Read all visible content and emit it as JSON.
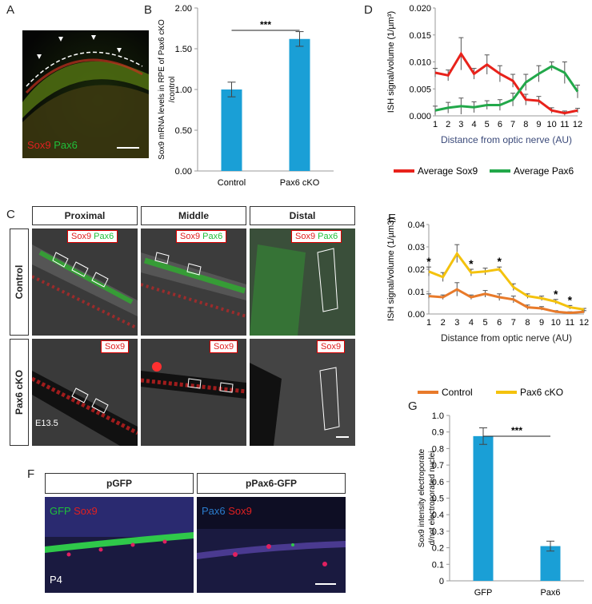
{
  "panels": {
    "A": {
      "letter": "A",
      "legend_a": "Sox9",
      "legend_b": "Pax6"
    },
    "B": {
      "letter": "B"
    },
    "C": {
      "letter": "C",
      "cols": [
        "Proximal",
        "Middle",
        "Distal"
      ],
      "rows": [
        "Control",
        "Pax6 cKO"
      ],
      "tag_control_a": "Sox9",
      "tag_control_b": "Pax6",
      "tag_cko": "Sox9",
      "stage": "E13.5"
    },
    "D": {
      "letter": "D"
    },
    "E": {
      "letter": "E"
    },
    "F": {
      "letter": "F",
      "cols": [
        "pGFP",
        "pPax6-GFP"
      ],
      "left_a": "GFP",
      "left_b": "Sox9",
      "right_a": "Pax6",
      "right_b": "Sox9",
      "age": "P4"
    },
    "G": {
      "letter": "G"
    }
  },
  "colors": {
    "bar": "#1a9fd6",
    "sox9": "#e8221b",
    "pax6": "#22a84a",
    "control": "#e87a2a",
    "cko": "#f4c20d"
  },
  "chart_data": [
    {
      "id": "B",
      "type": "bar",
      "categories": [
        "Control",
        "Pax6 cKO"
      ],
      "values": [
        1.0,
        1.62
      ],
      "errors": [
        0.09,
        0.09
      ],
      "ylabel": "Sox9 mRNA levels in RPE of Pax6 cKO/control",
      "ylim": [
        0,
        2.0
      ],
      "yticks": [
        "0.00",
        "0.50",
        "1.00",
        "1.50",
        "2.00"
      ],
      "significance": "***"
    },
    {
      "id": "D",
      "type": "line",
      "x": [
        1,
        2,
        3,
        4,
        5,
        6,
        7,
        8,
        9,
        10,
        11,
        12
      ],
      "series": [
        {
          "name": "Average Sox9",
          "values": [
            0.008,
            0.0075,
            0.0115,
            0.0078,
            0.0095,
            0.0078,
            0.0065,
            0.003,
            0.0028,
            0.001,
            0.0005,
            0.001
          ],
          "errors": [
            0.0008,
            0.001,
            0.003,
            0.001,
            0.0018,
            0.0015,
            0.0012,
            0.001,
            0.0008,
            0.0005,
            0.0004,
            0.0004
          ]
        },
        {
          "name": "Average Pax6",
          "values": [
            0.001,
            0.0015,
            0.0018,
            0.0016,
            0.002,
            0.002,
            0.003,
            0.0062,
            0.0078,
            0.0092,
            0.008,
            0.0045
          ],
          "errors": [
            0.0008,
            0.001,
            0.0015,
            0.001,
            0.0008,
            0.001,
            0.0012,
            0.0015,
            0.0015,
            0.0008,
            0.002,
            0.0012
          ]
        }
      ],
      "xlabel": "Distance from optic nerve (AU)",
      "ylabel": "ISH signal/volume (1/µm³)",
      "ylim": [
        0,
        0.02
      ],
      "yticks": [
        "0.000",
        "0.005",
        "0.010",
        "0.015",
        "0.020"
      ],
      "legend": "bottom"
    },
    {
      "id": "E",
      "type": "line",
      "x": [
        1,
        2,
        3,
        4,
        5,
        6,
        7,
        8,
        9,
        10,
        11,
        12
      ],
      "series": [
        {
          "name": "Control",
          "values": [
            0.008,
            0.0075,
            0.011,
            0.0075,
            0.009,
            0.0075,
            0.0065,
            0.003,
            0.0025,
            0.001,
            0.0005,
            0.001
          ],
          "errors": [
            0.001,
            0.001,
            0.003,
            0.001,
            0.0015,
            0.0015,
            0.0015,
            0.001,
            0.0008,
            0.0005,
            0.0005,
            0.0005
          ]
        },
        {
          "name": "Pax6 cKO",
          "values": [
            0.019,
            0.0165,
            0.027,
            0.0185,
            0.019,
            0.02,
            0.012,
            0.008,
            0.007,
            0.0055,
            0.003,
            0.002
          ],
          "errors": [
            0.002,
            0.002,
            0.004,
            0.0015,
            0.0015,
            0.001,
            0.0015,
            0.001,
            0.001,
            0.001,
            0.0008,
            0.0005
          ]
        }
      ],
      "stars": [
        1,
        4,
        6,
        10,
        11
      ],
      "xlabel": "Distance from optic nerve (AU)",
      "ylabel": "ISH signal/volume (1/µm3)",
      "ylim": [
        0,
        0.04
      ],
      "yticks": [
        "0.00",
        "0.01",
        "0.02",
        "0.03",
        "0.04"
      ],
      "legend": "bottom"
    },
    {
      "id": "G",
      "type": "bar",
      "categories": [
        "GFP",
        "Pax6"
      ],
      "values": [
        0.875,
        0.21
      ],
      "errors": [
        0.05,
        0.03
      ],
      "ylabel": "Sox9 intensity electroporated/not electroporated nuclei",
      "ylim": [
        0,
        1.0
      ],
      "yticks": [
        "0",
        "0.1",
        "0.2",
        "0.3",
        "0.4",
        "0.5",
        "0.6",
        "0.7",
        "0.8",
        "0.9",
        "1.0"
      ],
      "significance": "***"
    }
  ]
}
